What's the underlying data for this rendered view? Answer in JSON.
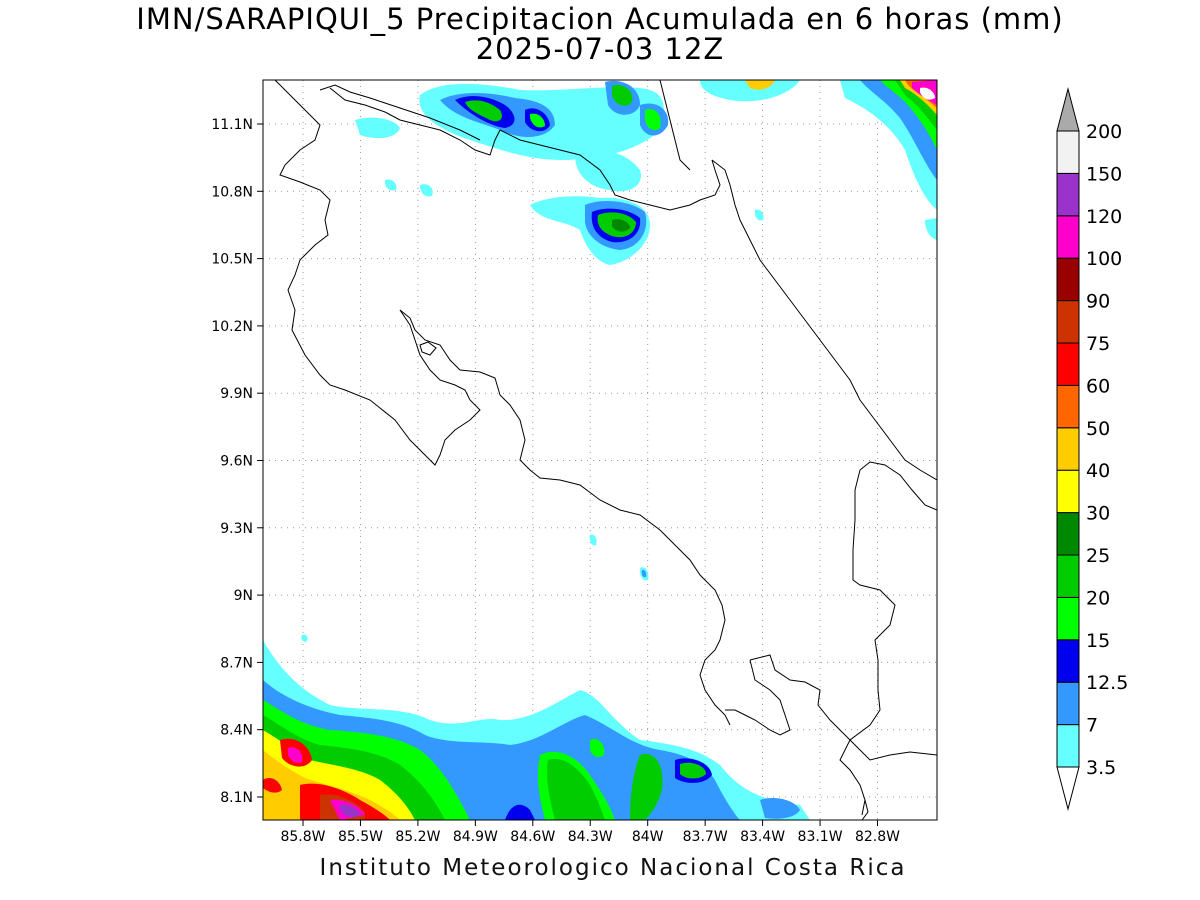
{
  "title": {
    "line1": "IMN/SARAPIQUI_5 Precipitacion Acumulada en 6 horas (mm)",
    "line2": "2025-07-03 12Z"
  },
  "footer": "Instituto Meteorologico Nacional Costa Rica",
  "map": {
    "lat_ticks": [
      "11.1N",
      "10.8N",
      "10.5N",
      "10.2N",
      "9.9N",
      "9.6N",
      "9.3N",
      "9N",
      "8.7N",
      "8.4N",
      "8.1N"
    ],
    "lon_ticks": [
      "85.8W",
      "85.5W",
      "85.2W",
      "84.9W",
      "84.6W",
      "84.3W",
      "84W",
      "83.7W",
      "83.4W",
      "83.1W",
      "82.8W"
    ],
    "lat_values": [
      11.1,
      10.8,
      10.5,
      10.2,
      9.9,
      9.6,
      9.3,
      9.0,
      8.7,
      8.4,
      8.1
    ],
    "lon_values": [
      -85.8,
      -85.5,
      -85.2,
      -84.9,
      -84.6,
      -84.3,
      -84.0,
      -83.7,
      -83.4,
      -83.1,
      -82.8
    ],
    "grid": "dotted"
  },
  "colorbar": {
    "levels": [
      "3.5",
      "7",
      "12.5",
      "15",
      "20",
      "25",
      "30",
      "40",
      "50",
      "60",
      "75",
      "90",
      "100",
      "120",
      "150",
      "200"
    ],
    "colors": [
      "#ffffff",
      "#66ffff",
      "#3399ff",
      "#0000ee",
      "#00ff00",
      "#00cc00",
      "#008800",
      "#ffff00",
      "#ffcc00",
      "#ff6600",
      "#ff0000",
      "#cc3300",
      "#990000",
      "#ff00cc",
      "#9933cc",
      "#f2f2f2"
    ],
    "end_triangle_top": "#aaaaaa",
    "end_triangle_bottom": "#ffffff"
  }
}
